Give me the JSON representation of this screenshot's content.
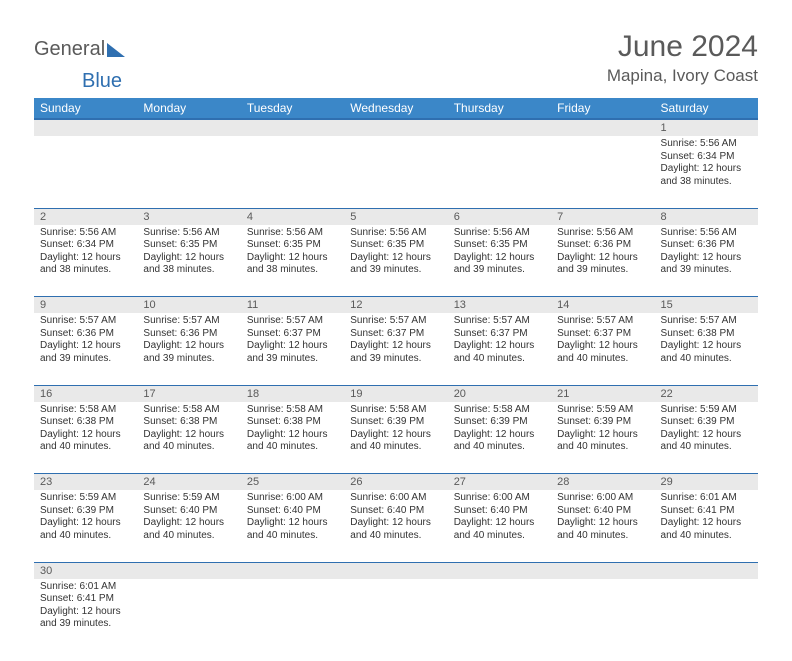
{
  "logo": {
    "part1": "General",
    "part2": "Blue"
  },
  "title": "June 2024",
  "subtitle": "Mapina, Ivory Coast",
  "colors": {
    "header_bg": "#3b87c8",
    "header_border": "#2f6fb0",
    "daynum_bg": "#e9e9e9",
    "text_gray": "#5a5a5a",
    "cell_text": "#333333"
  },
  "day_headers": [
    "Sunday",
    "Monday",
    "Tuesday",
    "Wednesday",
    "Thursday",
    "Friday",
    "Saturday"
  ],
  "weeks": [
    [
      null,
      null,
      null,
      null,
      null,
      null,
      {
        "n": "1",
        "sr": "5:56 AM",
        "ss": "6:34 PM",
        "dl": "12 hours and 38 minutes."
      }
    ],
    [
      {
        "n": "2",
        "sr": "5:56 AM",
        "ss": "6:34 PM",
        "dl": "12 hours and 38 minutes."
      },
      {
        "n": "3",
        "sr": "5:56 AM",
        "ss": "6:35 PM",
        "dl": "12 hours and 38 minutes."
      },
      {
        "n": "4",
        "sr": "5:56 AM",
        "ss": "6:35 PM",
        "dl": "12 hours and 38 minutes."
      },
      {
        "n": "5",
        "sr": "5:56 AM",
        "ss": "6:35 PM",
        "dl": "12 hours and 39 minutes."
      },
      {
        "n": "6",
        "sr": "5:56 AM",
        "ss": "6:35 PM",
        "dl": "12 hours and 39 minutes."
      },
      {
        "n": "7",
        "sr": "5:56 AM",
        "ss": "6:36 PM",
        "dl": "12 hours and 39 minutes."
      },
      {
        "n": "8",
        "sr": "5:56 AM",
        "ss": "6:36 PM",
        "dl": "12 hours and 39 minutes."
      }
    ],
    [
      {
        "n": "9",
        "sr": "5:57 AM",
        "ss": "6:36 PM",
        "dl": "12 hours and 39 minutes."
      },
      {
        "n": "10",
        "sr": "5:57 AM",
        "ss": "6:36 PM",
        "dl": "12 hours and 39 minutes."
      },
      {
        "n": "11",
        "sr": "5:57 AM",
        "ss": "6:37 PM",
        "dl": "12 hours and 39 minutes."
      },
      {
        "n": "12",
        "sr": "5:57 AM",
        "ss": "6:37 PM",
        "dl": "12 hours and 39 minutes."
      },
      {
        "n": "13",
        "sr": "5:57 AM",
        "ss": "6:37 PM",
        "dl": "12 hours and 40 minutes."
      },
      {
        "n": "14",
        "sr": "5:57 AM",
        "ss": "6:37 PM",
        "dl": "12 hours and 40 minutes."
      },
      {
        "n": "15",
        "sr": "5:57 AM",
        "ss": "6:38 PM",
        "dl": "12 hours and 40 minutes."
      }
    ],
    [
      {
        "n": "16",
        "sr": "5:58 AM",
        "ss": "6:38 PM",
        "dl": "12 hours and 40 minutes."
      },
      {
        "n": "17",
        "sr": "5:58 AM",
        "ss": "6:38 PM",
        "dl": "12 hours and 40 minutes."
      },
      {
        "n": "18",
        "sr": "5:58 AM",
        "ss": "6:38 PM",
        "dl": "12 hours and 40 minutes."
      },
      {
        "n": "19",
        "sr": "5:58 AM",
        "ss": "6:39 PM",
        "dl": "12 hours and 40 minutes."
      },
      {
        "n": "20",
        "sr": "5:58 AM",
        "ss": "6:39 PM",
        "dl": "12 hours and 40 minutes."
      },
      {
        "n": "21",
        "sr": "5:59 AM",
        "ss": "6:39 PM",
        "dl": "12 hours and 40 minutes."
      },
      {
        "n": "22",
        "sr": "5:59 AM",
        "ss": "6:39 PM",
        "dl": "12 hours and 40 minutes."
      }
    ],
    [
      {
        "n": "23",
        "sr": "5:59 AM",
        "ss": "6:39 PM",
        "dl": "12 hours and 40 minutes."
      },
      {
        "n": "24",
        "sr": "5:59 AM",
        "ss": "6:40 PM",
        "dl": "12 hours and 40 minutes."
      },
      {
        "n": "25",
        "sr": "6:00 AM",
        "ss": "6:40 PM",
        "dl": "12 hours and 40 minutes."
      },
      {
        "n": "26",
        "sr": "6:00 AM",
        "ss": "6:40 PM",
        "dl": "12 hours and 40 minutes."
      },
      {
        "n": "27",
        "sr": "6:00 AM",
        "ss": "6:40 PM",
        "dl": "12 hours and 40 minutes."
      },
      {
        "n": "28",
        "sr": "6:00 AM",
        "ss": "6:40 PM",
        "dl": "12 hours and 40 minutes."
      },
      {
        "n": "29",
        "sr": "6:01 AM",
        "ss": "6:41 PM",
        "dl": "12 hours and 40 minutes."
      }
    ],
    [
      {
        "n": "30",
        "sr": "6:01 AM",
        "ss": "6:41 PM",
        "dl": "12 hours and 39 minutes."
      },
      null,
      null,
      null,
      null,
      null,
      null
    ]
  ],
  "labels": {
    "sunrise": "Sunrise:",
    "sunset": "Sunset:",
    "daylight": "Daylight:"
  }
}
